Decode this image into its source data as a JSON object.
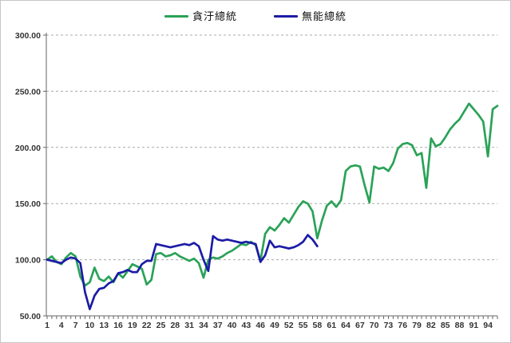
{
  "window": {
    "background": "#ffffff",
    "border_color": "#c6c6c6"
  },
  "legend": {
    "items": [
      {
        "label": "貪汙總統",
        "color": "#2aa257"
      },
      {
        "label": "無能總統",
        "color": "#1c1ca6"
      }
    ]
  },
  "axes_style": {
    "grid_color": "#aaaaaa",
    "axis_color": "#666666",
    "tick_color": "#666666",
    "label_color": "#333333"
  },
  "chart_data": {
    "type": "line",
    "title": "",
    "xlabel": "",
    "ylabel": "",
    "ylim": [
      50,
      300
    ],
    "grid": "horizontal-dashed",
    "legend_position": "top-center",
    "y_tick_labels": [
      "50.00",
      "100.00",
      "150.00",
      "200.00",
      "250.00",
      "300.00"
    ],
    "x_tick_labels": [
      "1",
      "4",
      "7",
      "10",
      "13",
      "16",
      "19",
      "22",
      "25",
      "28",
      "31",
      "34",
      "37",
      "40",
      "43",
      "46",
      "49",
      "52",
      "55",
      "58",
      "61",
      "64",
      "67",
      "70",
      "73",
      "76",
      "79",
      "82",
      "85",
      "88",
      "91",
      "94"
    ],
    "x_minor_tick_count": 96,
    "series": [
      {
        "name": "貪汙總統",
        "color": "#2aa257",
        "x_start": 1,
        "values": [
          100,
          103,
          98,
          96,
          102,
          106,
          103,
          85,
          77,
          80,
          93,
          83,
          81,
          85,
          80,
          88,
          84,
          90,
          96,
          94,
          92,
          78,
          82,
          105,
          106,
          103,
          104,
          106,
          103,
          101,
          99,
          101,
          97,
          84,
          100,
          102,
          101,
          103,
          106,
          108,
          111,
          114,
          113,
          116,
          113,
          99,
          123,
          129,
          126,
          131,
          137,
          133,
          140,
          147,
          152,
          150,
          143,
          119,
          135,
          148,
          152,
          147,
          153,
          179,
          183,
          184,
          183,
          166,
          151,
          183,
          181,
          182,
          179,
          186,
          199,
          203,
          204,
          202,
          193,
          195,
          164,
          208,
          201,
          203,
          209,
          216,
          221,
          225,
          232,
          239,
          234,
          229,
          223,
          192,
          234,
          237
        ]
      },
      {
        "name": "無能總統",
        "color": "#1c1ca6",
        "x_start": 1,
        "values": [
          100,
          99,
          98,
          97,
          100,
          102,
          101,
          97,
          71,
          56,
          68,
          74,
          75,
          79,
          81,
          88,
          89,
          91,
          89,
          89,
          96,
          99,
          99,
          114,
          113,
          112,
          111,
          112,
          113,
          114,
          113,
          115,
          112,
          100,
          90,
          121,
          118,
          117,
          118,
          117,
          116,
          115,
          116,
          115,
          114,
          98,
          104,
          117,
          111,
          112,
          111,
          110,
          111,
          113,
          116,
          122,
          118,
          112
        ]
      }
    ]
  }
}
